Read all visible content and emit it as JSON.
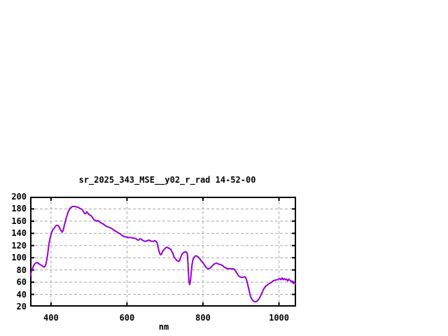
{
  "window": {
    "background": "#ffffff"
  },
  "chart_data": {
    "type": "line",
    "title": "sr_2025_343_MSE__y02_r_rad 14-52-00",
    "xlabel": "nm",
    "ylabel": "",
    "xlim": [
      345,
      1045
    ],
    "ylim": [
      20,
      200
    ],
    "xticks": [
      400,
      600,
      800,
      1000
    ],
    "yticks": [
      20,
      40,
      60,
      80,
      100,
      120,
      140,
      160,
      180,
      200
    ],
    "grid": true,
    "legend": "none",
    "line_color": "#9400d3",
    "grid_color": "#a8a8a8",
    "axis_color": "#000000",
    "series": [
      {
        "name": "sr_2025_343_MSE__y02_r_rad",
        "points": [
          [
            345,
            70
          ],
          [
            348,
            76
          ],
          [
            350,
            80
          ],
          [
            353,
            85
          ],
          [
            356,
            89
          ],
          [
            359,
            91
          ],
          [
            362,
            92
          ],
          [
            365,
            92
          ],
          [
            368,
            90
          ],
          [
            371,
            89
          ],
          [
            374,
            88
          ],
          [
            377,
            87
          ],
          [
            380,
            85
          ],
          [
            383,
            85
          ],
          [
            386,
            88
          ],
          [
            389,
            97
          ],
          [
            391,
            105
          ],
          [
            393,
            115
          ],
          [
            395,
            124
          ],
          [
            397,
            130
          ],
          [
            400,
            138
          ],
          [
            402,
            142
          ],
          [
            404,
            145
          ],
          [
            406,
            147
          ],
          [
            408,
            148
          ],
          [
            410,
            150
          ],
          [
            412,
            152
          ],
          [
            415,
            153
          ],
          [
            418,
            153
          ],
          [
            420,
            152
          ],
          [
            422,
            150
          ],
          [
            424,
            147
          ],
          [
            426,
            145
          ],
          [
            428,
            143
          ],
          [
            430,
            142
          ],
          [
            432,
            145
          ],
          [
            434,
            150
          ],
          [
            436,
            155
          ],
          [
            438,
            160
          ],
          [
            440,
            165
          ],
          [
            442,
            169
          ],
          [
            444,
            173
          ],
          [
            446,
            176
          ],
          [
            448,
            179
          ],
          [
            450,
            181
          ],
          [
            452,
            182
          ],
          [
            454,
            183
          ],
          [
            456,
            184
          ],
          [
            458,
            184
          ],
          [
            461,
            184
          ],
          [
            464,
            184
          ],
          [
            467,
            183
          ],
          [
            470,
            183
          ],
          [
            473,
            182
          ],
          [
            476,
            181
          ],
          [
            479,
            180
          ],
          [
            482,
            179
          ],
          [
            484,
            177
          ],
          [
            486,
            175
          ],
          [
            488,
            173
          ],
          [
            490,
            172
          ],
          [
            492,
            173
          ],
          [
            494,
            175
          ],
          [
            496,
            174
          ],
          [
            498,
            172
          ],
          [
            500,
            171
          ],
          [
            502,
            170
          ],
          [
            505,
            169
          ],
          [
            508,
            167
          ],
          [
            511,
            164
          ],
          [
            514,
            162
          ],
          [
            517,
            161
          ],
          [
            520,
            160
          ],
          [
            523,
            161
          ],
          [
            526,
            160
          ],
          [
            529,
            158
          ],
          [
            532,
            157
          ],
          [
            536,
            156
          ],
          [
            540,
            154
          ],
          [
            544,
            152
          ],
          [
            548,
            151
          ],
          [
            552,
            150
          ],
          [
            556,
            149
          ],
          [
            560,
            148
          ],
          [
            564,
            146
          ],
          [
            568,
            144
          ],
          [
            572,
            143
          ],
          [
            576,
            141
          ],
          [
            580,
            140
          ],
          [
            584,
            138
          ],
          [
            588,
            136
          ],
          [
            592,
            135
          ],
          [
            596,
            134
          ],
          [
            600,
            134
          ],
          [
            604,
            133
          ],
          [
            608,
            133
          ],
          [
            612,
            133
          ],
          [
            616,
            132
          ],
          [
            620,
            132
          ],
          [
            624,
            131
          ],
          [
            628,
            129
          ],
          [
            631,
            129
          ],
          [
            634,
            131
          ],
          [
            637,
            131
          ],
          [
            640,
            129
          ],
          [
            643,
            128
          ],
          [
            646,
            127
          ],
          [
            649,
            127
          ],
          [
            652,
            128
          ],
          [
            655,
            128
          ],
          [
            658,
            129
          ],
          [
            661,
            128
          ],
          [
            664,
            127
          ],
          [
            667,
            127
          ],
          [
            670,
            127
          ],
          [
            673,
            128
          ],
          [
            676,
            127
          ],
          [
            679,
            125
          ],
          [
            682,
            117
          ],
          [
            685,
            109
          ],
          [
            688,
            105
          ],
          [
            691,
            106
          ],
          [
            694,
            111
          ],
          [
            697,
            113
          ],
          [
            700,
            115
          ],
          [
            703,
            117
          ],
          [
            706,
            117
          ],
          [
            709,
            116
          ],
          [
            712,
            115
          ],
          [
            715,
            114
          ],
          [
            718,
            110
          ],
          [
            721,
            107
          ],
          [
            724,
            101
          ],
          [
            727,
            99
          ],
          [
            730,
            96
          ],
          [
            733,
            95
          ],
          [
            736,
            94
          ],
          [
            739,
            96
          ],
          [
            742,
            102
          ],
          [
            745,
            106
          ],
          [
            748,
            108
          ],
          [
            751,
            109
          ],
          [
            754,
            110
          ],
          [
            757,
            109
          ],
          [
            759,
            106
          ],
          [
            761,
            85
          ],
          [
            763,
            60
          ],
          [
            765,
            56
          ],
          [
            767,
            62
          ],
          [
            769,
            76
          ],
          [
            771,
            88
          ],
          [
            773,
            95
          ],
          [
            775,
            99
          ],
          [
            777,
            101
          ],
          [
            780,
            103
          ],
          [
            783,
            103
          ],
          [
            786,
            102
          ],
          [
            789,
            100
          ],
          [
            792,
            98
          ],
          [
            795,
            95
          ],
          [
            798,
            93
          ],
          [
            801,
            91
          ],
          [
            804,
            88
          ],
          [
            807,
            85
          ],
          [
            810,
            83
          ],
          [
            813,
            82
          ],
          [
            816,
            82
          ],
          [
            819,
            83
          ],
          [
            822,
            85
          ],
          [
            825,
            87
          ],
          [
            828,
            89
          ],
          [
            831,
            90
          ],
          [
            834,
            91
          ],
          [
            837,
            91
          ],
          [
            840,
            90
          ],
          [
            843,
            89
          ],
          [
            846,
            89
          ],
          [
            849,
            88
          ],
          [
            852,
            87
          ],
          [
            855,
            85
          ],
          [
            858,
            84
          ],
          [
            861,
            83
          ],
          [
            864,
            82
          ],
          [
            867,
            82
          ],
          [
            870,
            82
          ],
          [
            873,
            82
          ],
          [
            876,
            82
          ],
          [
            879,
            82
          ],
          [
            882,
            81
          ],
          [
            885,
            79
          ],
          [
            888,
            76
          ],
          [
            891,
            73
          ],
          [
            894,
            70
          ],
          [
            897,
            69
          ],
          [
            900,
            68
          ],
          [
            903,
            68
          ],
          [
            906,
            68
          ],
          [
            909,
            69
          ],
          [
            912,
            68
          ],
          [
            915,
            63
          ],
          [
            918,
            55
          ],
          [
            921,
            47
          ],
          [
            924,
            39
          ],
          [
            927,
            34
          ],
          [
            930,
            31
          ],
          [
            933,
            29
          ],
          [
            936,
            28
          ],
          [
            939,
            28
          ],
          [
            942,
            29
          ],
          [
            945,
            31
          ],
          [
            948,
            33
          ],
          [
            951,
            37
          ],
          [
            954,
            41
          ],
          [
            957,
            45
          ],
          [
            960,
            49
          ],
          [
            963,
            52
          ],
          [
            966,
            54
          ],
          [
            969,
            55
          ],
          [
            972,
            57
          ],
          [
            975,
            58
          ],
          [
            978,
            59
          ],
          [
            981,
            60
          ],
          [
            984,
            62
          ],
          [
            987,
            63
          ],
          [
            990,
            63
          ],
          [
            993,
            64
          ],
          [
            996,
            64
          ],
          [
            999,
            65
          ],
          [
            1002,
            66
          ],
          [
            1005,
            64
          ],
          [
            1008,
            67
          ],
          [
            1011,
            64
          ],
          [
            1014,
            66
          ],
          [
            1017,
            64
          ],
          [
            1020,
            65
          ],
          [
            1023,
            62
          ],
          [
            1026,
            65
          ],
          [
            1029,
            63
          ],
          [
            1032,
            61
          ],
          [
            1035,
            62
          ],
          [
            1038,
            58
          ],
          [
            1041,
            60
          ],
          [
            1044,
            57
          ]
        ]
      }
    ]
  }
}
